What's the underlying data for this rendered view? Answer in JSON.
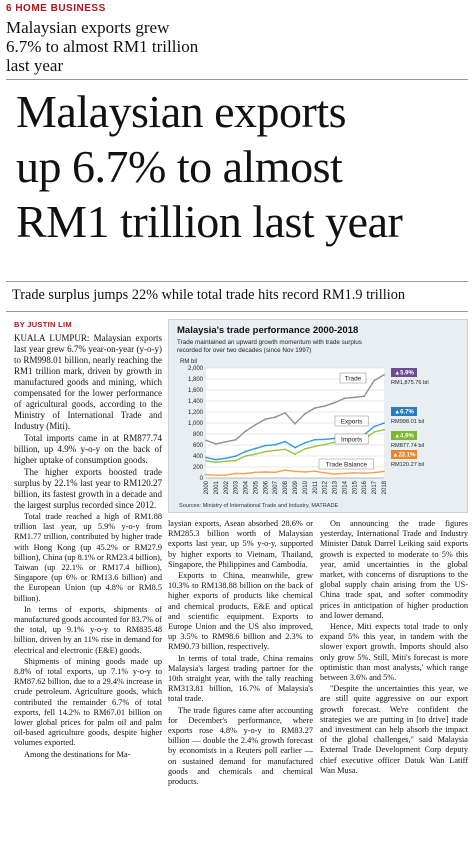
{
  "section": "6 HOME BUSINESS",
  "top_headline": "Malaysian exports grew 6.7% to almost RM1 trillion last year",
  "headline_lines": [
    "Malaysian exports",
    "up 6.7% to almost",
    "RM1 trillion last year"
  ],
  "subheadline": "Trade surplus jumps 22% while total trade hits record RM1.9 trillion",
  "byline": "BY JUSTIN LIM",
  "col1": [
    "KUALA LUMPUR: Malaysian exports last year grew 6.7% year-on-year (y-o-y) to RM998.01 billion, nearly reaching the RM1 trillion mark, driven by growth in manufactured goods and mining, which compensated for the lower performance of agricultural goods, according to the Ministry of International Trade and Industry (Miti).",
    "Total imports came in at RM877.74 billion, up 4.9% y-o-y on the back of higher uptake of consumption goods.",
    "The higher exports boosted trade surplus by 22.1% last year to RM120.27 billion, its fastest growth in a decade and the largest surplus recorded since 2012.",
    "Total trade reached a high of RM1.88 trillion last year, up 5.9% y-o-y from RM1.77 trillion, contributed by higher trade with Hong Kong (up 45.2% or RM27.9 billion), China (up 8.1% or RM23.4 billion), Taiwan (up 22.1% or RM17.4 billion), Singapore (up 6% or RM13.6 billion) and the European Union (up 4.8% or RM8.5 billion).",
    "In terms of exports, shipments of manufactured goods accounted for 83.7% of the total, up 9.1% y-o-y to RM835.48 billion, driven by an 11% rise in demand for electrical and electronic (E&E) goods.",
    "Shipments of mining goods made up 8.8% of total exports, up 7.1% y-o-y to RM87.62 billion, due to a 29.4% increase in crude petroleum. Agriculture goods, which contributed the remainder 6.7% of total exports, fell 14.2% to RM67.01 billion on lower global prices for palm oil and palm oil-based agriculture goods, despite higher volumes exported.",
    "Among the destinations for Ma-"
  ],
  "col2": [
    "laysian exports, Asean absorbed 28.6% or RM285.3 billion worth of Malaysian exports last year, up 5% y-o-y, supported by higher exports to Vietnam, Thailand, Singapore, the Philippines and Cambodia.",
    "Exports to China, meanwhile, grew 10.3% to RM138.88 billion on the back of higher exports of products like chemical and chemical products, E&E and optical and scientific equipment. Exports to Europe Union and the US also improved, up 3.5% to RM98.6 billion and 2.3% to RM90.73 billion, respectively.",
    "In terms of total trade, China remains Malaysia's largest trading partner for the 10th straight year, with the tally reaching RM313.81 billion, 16.7% of Malaysia's total trade.",
    "The trade figures came after accounting for December's performance, where exports rose 4.8% y-o-y to RM83.27 billion — double the 2.4% growth forecast by economists in a Reuters poll earlier — on sustained demand for manufactured goods and chemicals and chemical products."
  ],
  "col3": [
    "On announcing the trade figures yesterday, International Trade and Industry Minister Datuk Darrel Leiking said exports growth is expected to moderate to 5% this year, amid uncertainties in the global market, with concerns of disruptions to the global supply chain arising from the US-China trade spat, and softer commodity prices in anticipation of higher production and lower demand.",
    "Hence, Miti expects total trade to only expand 5% this year, in tandem with the slower export growth. Imports should also only grow 5%. Still, Miti's forecast is more optimistic than most analysts,' which range between 3.6% and 5%.",
    "\"Despite the uncertainties this year, we are still quite aggressive on our export growth forecast. We're confident the strategies we are putting in [to drive] trade and investment can help absorb the impact of the global challenges,\" said Malaysia External Trade Development Corp deputy chief executive officer Datuk Wan Latiff Wan Musa."
  ],
  "chart_data": {
    "type": "line",
    "title": "Malaysia's trade performance 2000-2018",
    "subtitle": "Trade maintained an upward growth momentum with trade surplus recorded for over two decades (since Nov 1997)",
    "ylabel": "RM bil",
    "source": "Sources: Ministry of International Trade and Industry, MATRADE",
    "ylim": [
      0,
      2000
    ],
    "yticks": [
      "0",
      "200",
      "400",
      "600",
      "800",
      "1,000",
      "1,200",
      "1,400",
      "1,600",
      "1,800",
      "2,000"
    ],
    "categories": [
      "2000",
      "2001",
      "2002",
      "2003",
      "2004",
      "2005",
      "2006",
      "2007",
      "2008",
      "2009",
      "2010",
      "2011",
      "2012",
      "2013",
      "2014",
      "2015",
      "2016",
      "2017",
      "2018"
    ],
    "series": [
      {
        "name": "Trade",
        "color": "#8e8fa0",
        "badge_color": "#6a4c93",
        "growth": "5.9%",
        "end_label": "RM1,875.76 bil",
        "values": [
          684,
          619,
          658,
          694,
          852,
          967,
          1069,
          1106,
          1184,
          987,
          1168,
          1271,
          1308,
          1369,
          1448,
          1466,
          1487,
          1771,
          1876
        ]
      },
      {
        "name": "Exports",
        "color": "#2b9ed8",
        "badge_color": "#2b7bc0",
        "growth": "6.7%",
        "end_label": "RM998.01 bil",
        "values": [
          373,
          334,
          357,
          398,
          481,
          536,
          589,
          605,
          663,
          553,
          639,
          697,
          702,
          720,
          766,
          780,
          787,
          935,
          998
        ]
      },
      {
        "name": "Imports",
        "color": "#9bc53d",
        "badge_color": "#7cb82f",
        "growth": "4.9%",
        "end_label": "RM877.74 bil",
        "values": [
          311,
          285,
          303,
          317,
          400,
          433,
          480,
          502,
          521,
          434,
          529,
          574,
          607,
          649,
          683,
          686,
          699,
          837,
          878
        ]
      },
      {
        "name": "Trade Balance",
        "color": "#f5a04a",
        "badge_color": "#e8862a",
        "growth": "22.1%",
        "end_label": "RM120.27 bil",
        "values": [
          62,
          49,
          54,
          81,
          81,
          103,
          109,
          103,
          142,
          119,
          110,
          123,
          95,
          71,
          83,
          94,
          88,
          98,
          120
        ]
      }
    ]
  }
}
